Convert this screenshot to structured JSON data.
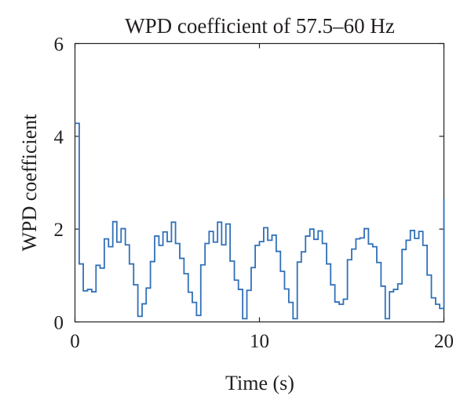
{
  "chart_data": {
    "type": "line",
    "title": "WPD coefficient of 57.5–60 Hz",
    "xlabel": "Time (s)",
    "ylabel": "WPD coefficient",
    "xlim": [
      0,
      20
    ],
    "ylim": [
      0,
      6
    ],
    "xticks": [
      0,
      10,
      20
    ],
    "yticks": [
      0,
      2,
      4,
      6
    ],
    "grid": false,
    "step": true,
    "series_color": "#3070b8",
    "series": [
      {
        "x": [
          0.0,
          0.23,
          0.45,
          0.68,
          0.91,
          1.14,
          1.36,
          1.59,
          1.82,
          2.05,
          2.27,
          2.5,
          2.73,
          2.95,
          3.18,
          3.41,
          3.64,
          3.86,
          4.09,
          4.32,
          4.55,
          4.77,
          5.0,
          5.23,
          5.45,
          5.68,
          5.91,
          6.14,
          6.36,
          6.59,
          6.82,
          7.05,
          7.27,
          7.5,
          7.73,
          7.95,
          8.18,
          8.41,
          8.64,
          8.86,
          9.09,
          9.32,
          9.55,
          9.77,
          10.0,
          10.23,
          10.45,
          10.68,
          10.91,
          11.14,
          11.36,
          11.59,
          11.82,
          12.05,
          12.27,
          12.5,
          12.73,
          12.95,
          13.18,
          13.41,
          13.64,
          13.86,
          14.09,
          14.32,
          14.55,
          14.77,
          15.0,
          15.23,
          15.45,
          15.68,
          15.91,
          16.14,
          16.36,
          16.59,
          16.82,
          17.05,
          17.27,
          17.5,
          17.73,
          17.95,
          18.18,
          18.41,
          18.64,
          18.86,
          19.09,
          19.32,
          19.55,
          19.77,
          20.0
        ],
        "y": [
          4.28,
          1.25,
          0.67,
          0.7,
          0.65,
          1.22,
          1.16,
          1.79,
          1.62,
          2.16,
          1.72,
          2.01,
          1.66,
          1.25,
          0.8,
          0.12,
          0.39,
          0.73,
          1.3,
          1.85,
          1.65,
          1.94,
          1.73,
          2.15,
          1.69,
          1.37,
          1.04,
          0.64,
          0.42,
          0.14,
          1.23,
          1.69,
          1.95,
          1.72,
          2.15,
          1.66,
          2.11,
          1.31,
          0.9,
          0.7,
          0.07,
          0.68,
          1.17,
          1.65,
          1.73,
          2.03,
          1.76,
          1.87,
          1.52,
          1.09,
          0.71,
          0.42,
          0.07,
          1.29,
          1.51,
          1.85,
          2.0,
          1.78,
          1.96,
          1.69,
          1.25,
          0.8,
          0.43,
          0.38,
          0.49,
          1.34,
          1.57,
          1.79,
          1.81,
          2.01,
          1.68,
          1.62,
          1.28,
          0.77,
          0.07,
          0.65,
          0.7,
          0.82,
          1.56,
          1.76,
          1.97,
          1.8,
          1.95,
          1.65,
          1.01,
          0.52,
          0.38,
          0.29,
          2.66
        ]
      }
    ]
  }
}
